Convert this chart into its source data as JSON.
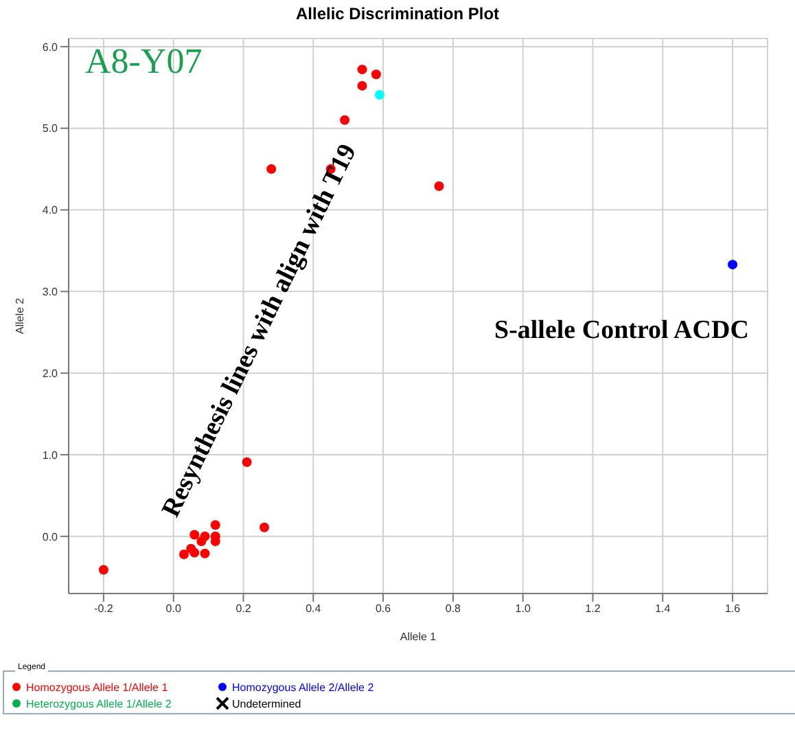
{
  "chart_data": {
    "type": "scatter",
    "title": "Allelic Discrimination Plot",
    "xlabel": "Allele 1",
    "ylabel": "Allele 2",
    "legend_title": "Legend",
    "xlim": [
      -0.3,
      1.7
    ],
    "ylim": [
      -0.7,
      6.1
    ],
    "xticks": [
      {
        "value": -0.2,
        "label": "-0.2"
      },
      {
        "value": 0,
        "label": "0.0"
      },
      {
        "value": 0.2,
        "label": "0.2"
      },
      {
        "value": 0.4,
        "label": "0.4"
      },
      {
        "value": 0.6,
        "label": "0.6"
      },
      {
        "value": 0.8,
        "label": "0.8"
      },
      {
        "value": 1,
        "label": "1.0"
      },
      {
        "value": 1.2,
        "label": "1.2"
      },
      {
        "value": 1.4,
        "label": "1.4"
      },
      {
        "value": 1.6,
        "label": "1.6"
      }
    ],
    "yticks": [
      {
        "value": 0,
        "label": "0.0"
      },
      {
        "value": 1,
        "label": "1.0"
      },
      {
        "value": 2,
        "label": "2.0"
      },
      {
        "value": 3,
        "label": "3.0"
      },
      {
        "value": 4,
        "label": "4.0"
      },
      {
        "value": 5,
        "label": "5.0"
      },
      {
        "value": 6,
        "label": "6.0"
      }
    ],
    "grid": true,
    "legend": "bottom",
    "marker": "circle",
    "series": [
      {
        "name": "Homozygous Allele 1/Allele 1",
        "color": "#ff0000",
        "x": [
          0.28,
          0.45,
          0.49,
          0.54,
          0.54,
          0.58,
          0.76,
          0.21,
          0.26,
          -0.2,
          0.06,
          0.09,
          0.12,
          0.12,
          0.12,
          0.08,
          0.05,
          0.06,
          0.03,
          0.09
        ],
        "values": [
          4.5,
          4.5,
          5.1,
          5.72,
          5.52,
          5.66,
          4.29,
          0.91,
          0.11,
          -0.41,
          0.02,
          0.0,
          0.14,
          0.0,
          -0.06,
          -0.06,
          -0.15,
          -0.2,
          -0.22,
          -0.21
        ]
      },
      {
        "name": "Homozygous Allele 2/Allele 2",
        "color": "#0000ff",
        "x": [
          1.6
        ],
        "values": [
          3.33
        ]
      },
      {
        "name": "Heterozygous Allele 1/Allele 2",
        "color": "#00b050"
      },
      {
        "name": "Undetermined",
        "color": "#000000",
        "marker": "cross"
      },
      {
        "color": "#00ffff",
        "x": [
          0.59
        ],
        "values": [
          5.41
        ]
      }
    ],
    "annotations": [
      "A8-Y07",
      "Resynthesis lines with align with T19",
      "S-allele Control ACDC"
    ]
  }
}
